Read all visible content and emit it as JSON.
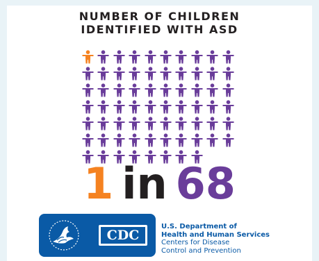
{
  "header": {
    "title_line1": "NUMBER OF CHILDREN",
    "title_line2": "IDENTIFIED WITH ASD"
  },
  "pictogram": {
    "total_figures": 68,
    "highlighted_figures": 1,
    "per_row": 10,
    "icon": "child-figure-icon",
    "highlight_color": "#f58220",
    "base_color": "#6a3d9a"
  },
  "ratio": {
    "numerator": "1",
    "word": "in",
    "denominator": "68"
  },
  "footer": {
    "cdc_label": "CDC",
    "hhs_line1": "U.S. Department of",
    "hhs_line2": "Health and Human Services",
    "cdc_line1": "Centers for Disease",
    "cdc_line2": "Control and Prevention",
    "brand_color": "#0a5aa6"
  }
}
